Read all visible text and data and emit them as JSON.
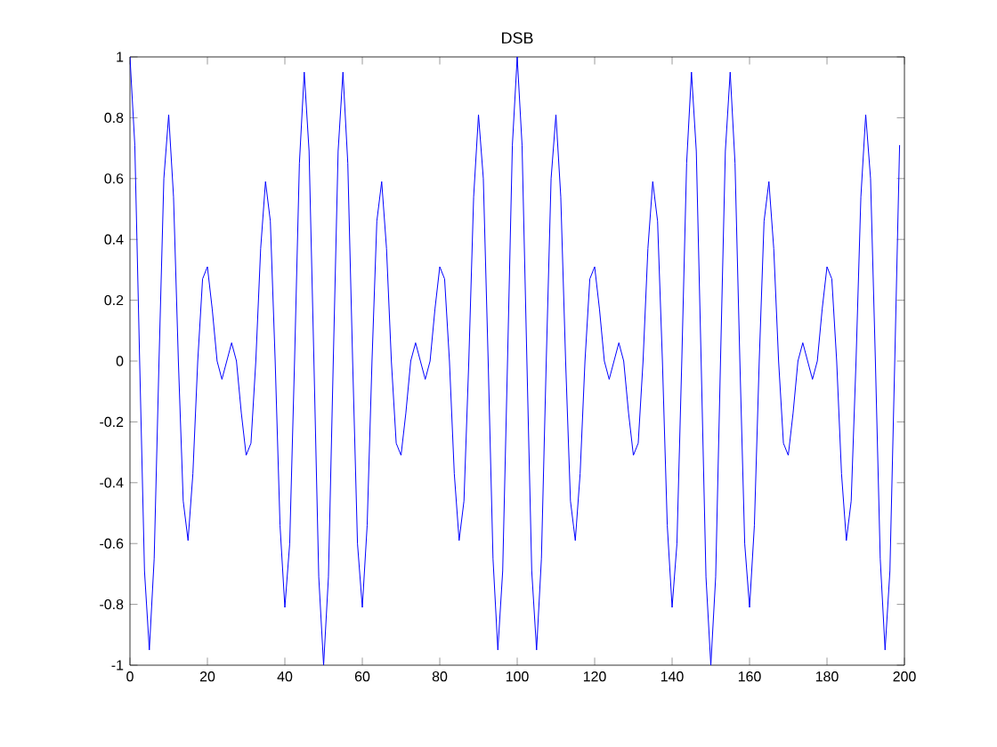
{
  "chart_data": {
    "type": "line",
    "title": "DSB",
    "x": [
      0,
      1.25,
      2.5,
      3.75,
      5,
      6.25,
      7.5,
      8.75,
      10,
      11.25,
      12.5,
      13.75,
      15,
      16.25,
      17.5,
      18.75,
      20,
      21.25,
      22.5,
      23.75,
      25,
      26.25,
      27.5,
      28.75,
      30,
      31.25,
      32.5,
      33.75,
      35,
      36.25,
      37.5,
      38.75,
      40,
      41.25,
      42.5,
      43.75,
      45,
      46.25,
      47.5,
      48.75,
      50,
      51.25,
      52.5,
      53.75,
      55,
      56.25,
      57.5,
      58.75,
      60,
      61.25,
      62.5,
      63.75,
      65,
      66.25,
      67.5,
      68.75,
      70,
      71.25,
      72.5,
      73.75,
      75,
      76.25,
      77.5,
      78.75,
      80,
      81.25,
      82.5,
      83.75,
      85,
      86.25,
      87.5,
      88.75,
      90,
      91.25,
      92.5,
      93.75,
      95,
      96.25,
      97.5,
      98.75,
      100,
      101.25,
      102.5,
      103.75,
      105,
      106.25,
      107.5,
      108.75,
      110,
      111.25,
      112.5,
      113.75,
      115,
      116.25,
      117.5,
      118.75,
      120,
      121.25,
      122.5,
      123.75,
      125,
      126.25,
      127.5,
      128.75,
      130,
      131.25,
      132.5,
      133.75,
      135,
      136.25,
      137.5,
      138.75,
      140,
      141.25,
      142.5,
      143.75,
      145,
      146.25,
      147.5,
      148.75,
      150,
      151.25,
      152.5,
      153.75,
      155,
      156.25,
      157.5,
      158.75,
      160,
      161.25,
      162.5,
      163.75,
      165,
      166.25,
      167.5,
      168.75,
      170,
      171.25,
      172.5,
      173.75,
      175,
      176.25,
      177.5,
      178.75,
      180,
      181.25,
      182.5,
      183.75,
      185,
      186.25,
      187.5,
      188.75,
      190,
      191.25,
      192.5,
      193.75,
      195,
      196.25,
      197.5,
      198.75
    ],
    "series": [
      {
        "color": "#0000ff",
        "values": [
          1,
          0.71,
          0,
          -0.69,
          -0.95,
          -0.65,
          0,
          0.6,
          0.81,
          0.54,
          0,
          -0.46,
          -0.59,
          -0.37,
          0,
          0.27,
          0.31,
          0.17,
          0,
          -0.06,
          0,
          0.06,
          0,
          -0.17,
          -0.31,
          -0.27,
          0,
          0.37,
          0.59,
          0.46,
          0,
          -0.54,
          -0.81,
          -0.6,
          0,
          0.65,
          0.95,
          0.69,
          0,
          -0.71,
          -1,
          -0.71,
          0,
          0.69,
          0.95,
          0.65,
          0,
          -0.6,
          -0.81,
          -0.54,
          0,
          0.46,
          0.59,
          0.37,
          0,
          -0.27,
          -0.31,
          -0.17,
          0,
          0.06,
          0,
          -0.06,
          0,
          0.17,
          0.31,
          0.27,
          0,
          -0.37,
          -0.59,
          -0.46,
          0,
          0.54,
          0.81,
          0.6,
          0,
          -0.65,
          -0.95,
          -0.69,
          0,
          0.71,
          1,
          0.71,
          0,
          -0.69,
          -0.95,
          -0.65,
          0,
          0.6,
          0.81,
          0.54,
          0,
          -0.46,
          -0.59,
          -0.37,
          0,
          0.27,
          0.31,
          0.17,
          0,
          -0.06,
          0,
          0.06,
          0,
          -0.17,
          -0.31,
          -0.27,
          0,
          0.37,
          0.59,
          0.46,
          0,
          -0.54,
          -0.81,
          -0.6,
          0,
          0.65,
          0.95,
          0.69,
          0,
          -0.71,
          -1,
          -0.71,
          0,
          0.69,
          0.95,
          0.65,
          0,
          -0.6,
          -0.81,
          -0.54,
          0,
          0.46,
          0.59,
          0.37,
          0,
          -0.27,
          -0.31,
          -0.17,
          0,
          0.06,
          0,
          -0.06,
          0,
          0.17,
          0.31,
          0.27,
          0,
          -0.37,
          -0.59,
          -0.46,
          0,
          0.54,
          0.81,
          0.6,
          0,
          -0.65,
          -0.95,
          -0.69,
          0,
          0.71
        ]
      }
    ],
    "xlim": [
      0,
      200
    ],
    "ylim": [
      -1,
      1
    ],
    "xticks": [
      0,
      20,
      40,
      60,
      80,
      100,
      120,
      140,
      160,
      180,
      200
    ],
    "yticks": [
      -1,
      -0.8,
      -0.6,
      -0.4,
      -0.2,
      0,
      0.2,
      0.4,
      0.6,
      0.8,
      1
    ],
    "grid": false,
    "marker": "none",
    "line_style": "solid"
  }
}
